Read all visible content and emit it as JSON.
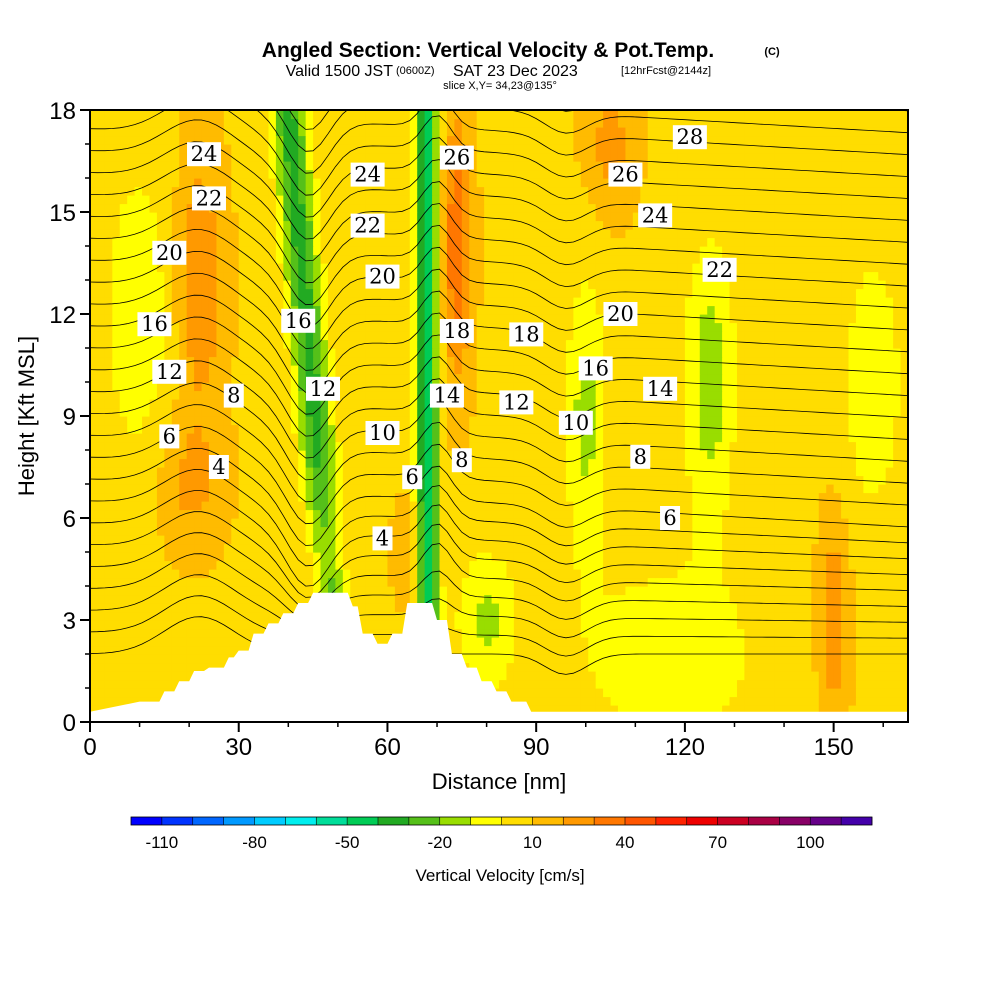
{
  "header": {
    "title": "Angled Section: Vertical Velocity & Pot.Temp.",
    "title_suffix": "(C)",
    "valid_prefix": "Valid 1500 JST",
    "valid_utc": "(0600Z)",
    "valid_date": "SAT 23 Dec 2023",
    "forecast": "[12hrFcst@2144z]",
    "slice": "slice X,Y= 34,23@135°"
  },
  "chart_data": {
    "type": "heatmap",
    "xlabel": "Distance [nm]",
    "ylabel": "Height [Kft MSL]",
    "xlim": [
      0,
      165
    ],
    "ylim": [
      0,
      18
    ],
    "x_ticks": [
      "0",
      "30",
      "60",
      "90",
      "120",
      "150"
    ],
    "y_ticks": [
      "0",
      "3",
      "6",
      "9",
      "12",
      "15",
      "18"
    ],
    "field": "vertical velocity (shaded) with potential temperature contours",
    "colorbar": {
      "title": "Vertical Velocity [cm/s]",
      "range": [
        -120,
        120
      ],
      "step": 10,
      "tick_labels": [
        "-110",
        "-80",
        "-50",
        "-20",
        "10",
        "40",
        "70",
        "100"
      ],
      "colors": [
        "#0000ff",
        "#0033ff",
        "#0066ff",
        "#0099ff",
        "#00ccff",
        "#00eeee",
        "#00dd99",
        "#00cc55",
        "#22aa22",
        "#55c019",
        "#99dd00",
        "#ffff00",
        "#ffdd00",
        "#ffbb00",
        "#ff9900",
        "#ff7700",
        "#ff5500",
        "#ff2200",
        "#ee0000",
        "#cc0022",
        "#aa0044",
        "#880066",
        "#660088",
        "#4400aa"
      ]
    },
    "terrain_steps": [
      [
        0,
        0.3
      ],
      [
        10,
        0.6
      ],
      [
        14,
        0.6
      ],
      [
        15,
        0.9
      ],
      [
        17,
        0.9
      ],
      [
        18,
        1.2
      ],
      [
        20,
        1.2
      ],
      [
        21,
        1.5
      ],
      [
        23,
        1.5
      ],
      [
        24,
        1.6
      ],
      [
        27,
        1.6
      ],
      [
        28,
        1.9
      ],
      [
        29,
        1.9
      ],
      [
        30,
        2.1
      ],
      [
        32,
        2.1
      ],
      [
        33,
        2.6
      ],
      [
        35,
        2.6
      ],
      [
        36,
        2.9
      ],
      [
        38,
        2.9
      ],
      [
        39,
        3.2
      ],
      [
        41,
        3.2
      ],
      [
        42,
        3.5
      ],
      [
        44,
        3.5
      ],
      [
        45,
        3.8
      ],
      [
        52,
        3.8
      ],
      [
        53,
        3.4
      ],
      [
        54,
        3.4
      ],
      [
        55,
        2.6
      ],
      [
        57,
        2.6
      ],
      [
        58,
        2.3
      ],
      [
        60,
        2.3
      ],
      [
        61,
        2.6
      ],
      [
        63,
        2.6
      ],
      [
        64,
        3.5
      ],
      [
        69,
        3.5
      ],
      [
        70,
        3.0
      ],
      [
        72,
        3.0
      ],
      [
        73,
        2.0
      ],
      [
        75,
        2.0
      ],
      [
        76,
        1.6
      ],
      [
        78,
        1.6
      ],
      [
        79,
        1.2
      ],
      [
        81,
        1.2
      ],
      [
        82,
        0.9
      ],
      [
        84,
        0.9
      ],
      [
        85,
        0.6
      ],
      [
        88,
        0.6
      ],
      [
        89,
        0.3
      ],
      [
        165,
        0.3
      ]
    ],
    "contour_labels": [
      {
        "text": "24",
        "x": 23,
        "y": 16.7
      },
      {
        "text": "22",
        "x": 24,
        "y": 15.4
      },
      {
        "text": "20",
        "x": 16,
        "y": 13.8
      },
      {
        "text": "16",
        "x": 13,
        "y": 11.7
      },
      {
        "text": "12",
        "x": 16,
        "y": 10.3
      },
      {
        "text": "8",
        "x": 29,
        "y": 9.6
      },
      {
        "text": "6",
        "x": 16,
        "y": 8.4
      },
      {
        "text": "4",
        "x": 26,
        "y": 7.5
      },
      {
        "text": "24",
        "x": 56,
        "y": 16.1
      },
      {
        "text": "22",
        "x": 56,
        "y": 14.6
      },
      {
        "text": "20",
        "x": 59,
        "y": 13.1
      },
      {
        "text": "16",
        "x": 42,
        "y": 11.8
      },
      {
        "text": "12",
        "x": 47,
        "y": 9.8
      },
      {
        "text": "10",
        "x": 59,
        "y": 8.5
      },
      {
        "text": "6",
        "x": 65,
        "y": 7.2
      },
      {
        "text": "4",
        "x": 59,
        "y": 5.4
      },
      {
        "text": "26",
        "x": 74,
        "y": 16.6
      },
      {
        "text": "18",
        "x": 74,
        "y": 11.5
      },
      {
        "text": "14",
        "x": 72,
        "y": 9.6
      },
      {
        "text": "8",
        "x": 75,
        "y": 7.7
      },
      {
        "text": "18",
        "x": 88,
        "y": 11.4
      },
      {
        "text": "12",
        "x": 86,
        "y": 9.4
      },
      {
        "text": "10",
        "x": 98,
        "y": 8.8
      },
      {
        "text": "16",
        "x": 102,
        "y": 10.4
      },
      {
        "text": "20",
        "x": 107,
        "y": 12.0
      },
      {
        "text": "26",
        "x": 108,
        "y": 16.1
      },
      {
        "text": "24",
        "x": 114,
        "y": 14.9
      },
      {
        "text": "28",
        "x": 121,
        "y": 17.2
      },
      {
        "text": "22",
        "x": 127,
        "y": 13.3
      },
      {
        "text": "14",
        "x": 115,
        "y": 9.8
      },
      {
        "text": "8",
        "x": 111,
        "y": 7.8
      },
      {
        "text": "6",
        "x": 117,
        "y": 6.0
      }
    ]
  }
}
